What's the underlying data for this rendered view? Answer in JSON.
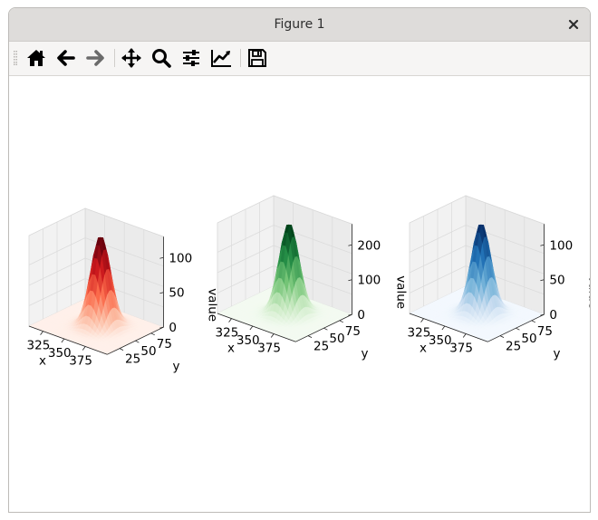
{
  "window": {
    "title": "Figure 1",
    "close_icon": "close-icon"
  },
  "toolbar": {
    "buttons": [
      {
        "icon": "home-icon",
        "name": "home"
      },
      {
        "icon": "back-arrow-icon",
        "name": "back"
      },
      {
        "icon": "forward-arrow-icon",
        "name": "forward",
        "disabled": true
      },
      {
        "icon": "pan-icon",
        "name": "pan"
      },
      {
        "icon": "zoom-icon",
        "name": "zoom"
      },
      {
        "icon": "subplots-icon",
        "name": "configure-subplots"
      },
      {
        "icon": "edit-axes-icon",
        "name": "edit-axis"
      },
      {
        "icon": "save-icon",
        "name": "save"
      }
    ]
  },
  "chart_data": [
    {
      "type": "surface3d",
      "colormap": "Reds",
      "xlabel": "x",
      "ylabel": "y",
      "zlabel": "value",
      "x_ticks": [
        "325",
        "350",
        "375"
      ],
      "y_ticks": [
        "25",
        "50",
        "75"
      ],
      "z_ticks": [
        "0",
        "50",
        "100"
      ],
      "zlim": [
        0,
        130
      ],
      "peak_value": 130,
      "accent": "#67000d"
    },
    {
      "type": "surface3d",
      "colormap": "Greens",
      "xlabel": "x",
      "ylabel": "y",
      "zlabel": "value",
      "x_ticks": [
        "325",
        "350",
        "375"
      ],
      "y_ticks": [
        "25",
        "50",
        "75"
      ],
      "z_ticks": [
        "0",
        "100",
        "200"
      ],
      "zlim": [
        0,
        260
      ],
      "peak_value": 260,
      "accent": "#00441b"
    },
    {
      "type": "surface3d",
      "colormap": "Blues",
      "xlabel": "x",
      "ylabel": "y",
      "zlabel": "value",
      "x_ticks": [
        "325",
        "350",
        "375"
      ],
      "y_ticks": [
        "25",
        "50",
        "75"
      ],
      "z_ticks": [
        "0",
        "50",
        "100"
      ],
      "zlim": [
        0,
        130
      ],
      "peak_value": 130,
      "accent": "#08306b"
    }
  ]
}
